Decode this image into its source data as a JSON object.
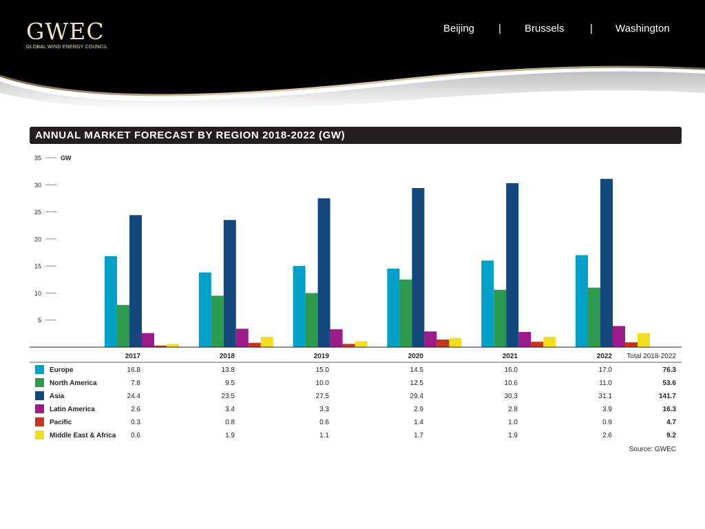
{
  "header": {
    "logo_text": "GWEC",
    "logo_subtitle": "GLOBAL WIND ENERGY COUNCIL",
    "cities": [
      "Beijing",
      "Brussels",
      "Washington"
    ],
    "separator": "|"
  },
  "title": "ANNUAL MARKET FORECAST BY REGION 2018-2022 (GW)",
  "source": "Source: GWEC",
  "chart_data": {
    "type": "bar",
    "title": "ANNUAL MARKET FORECAST BY REGION 2018-2022 (GW)",
    "ylabel": "GW",
    "xlabel": "",
    "ylim": [
      0,
      35
    ],
    "yticks": [
      5,
      10,
      15,
      20,
      25,
      30,
      35
    ],
    "categories": [
      "2017",
      "2018",
      "2019",
      "2020",
      "2021",
      "2022"
    ],
    "total_label": "Total 2018-2022",
    "series": [
      {
        "name": "Europe",
        "color": "#00a0c8",
        "values": [
          16.8,
          13.8,
          15.0,
          14.5,
          16.0,
          17.0
        ],
        "labels": [
          "16.8",
          "13.8",
          "15.0",
          "14.5",
          "16.0",
          "17.0"
        ],
        "total": "76.3"
      },
      {
        "name": "North America",
        "color": "#2e9a4e",
        "values": [
          7.8,
          9.5,
          10.0,
          12.5,
          10.6,
          11.0
        ],
        "labels": [
          "7.8",
          "9.5",
          "10.0",
          "12.5",
          "10.6",
          "11.0"
        ],
        "total": "53.6"
      },
      {
        "name": "Asia",
        "color": "#13487c",
        "values": [
          24.4,
          23.5,
          27.5,
          29.4,
          30.3,
          31.1
        ],
        "labels": [
          "24.4",
          "23.5",
          "27.5",
          "29.4",
          "30.3",
          "31.1"
        ],
        "total": "141.7"
      },
      {
        "name": "Latin America",
        "color": "#9c1a8a",
        "values": [
          2.6,
          3.4,
          3.3,
          2.9,
          2.8,
          3.9
        ],
        "labels": [
          "2.6",
          "3.4",
          "3.3",
          "2.9",
          "2.8",
          "3.9"
        ],
        "total": "16.3"
      },
      {
        "name": "Pacific",
        "color": "#c8321e",
        "values": [
          0.3,
          0.8,
          0.6,
          1.4,
          1.0,
          0.9
        ],
        "labels": [
          "0.3",
          "0.8",
          "0.6",
          "1.4",
          "1.0",
          "0.9"
        ],
        "total": "4.7"
      },
      {
        "name": "Middle East & Africa",
        "color": "#f2df1a",
        "values": [
          0.6,
          1.9,
          1.1,
          1.7,
          1.9,
          2.6
        ],
        "labels": [
          "0.6",
          "1.9",
          "1.1",
          "1.7",
          "1.9",
          "2.6"
        ],
        "total": "9.2"
      }
    ]
  }
}
